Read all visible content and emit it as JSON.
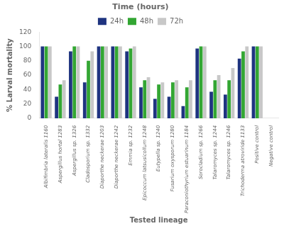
{
  "chart_data": {
    "type": "bar",
    "title": "Time (hours)",
    "xlabel": "Tested lineage",
    "ylabel": "% Larval mortality",
    "categories": [
      "Albifimbria lateralis 1160",
      "Aspergillus hortal 1283",
      "Aspergillus sp. 1326",
      "Cladosporium sp. 1332",
      "Diaporthe neckerae 1203",
      "Diaporthe neckerae 1242",
      "Emmia sp. 1232",
      "Epicoccum latsusicollum 1248",
      "Eutypella sp. 1240",
      "Fusarium oxysporum 1280",
      "Paraconiothyrium estuarinum 1184",
      "Sorocladium sp. 1266",
      "Talaromyces sp. 1244",
      "Talaromyces sp. 1246",
      "Trichoderma atroviride 1133",
      "Positive control",
      "Negative control"
    ],
    "series": [
      {
        "name": "24h",
        "color": "#1f3480",
        "values": [
          100,
          30,
          93,
          50,
          100,
          100,
          93,
          43,
          27,
          30,
          17,
          97,
          37,
          33,
          83,
          100,
          0
        ]
      },
      {
        "name": "48h",
        "color": "#33a633",
        "values": [
          100,
          47,
          100,
          80,
          100,
          100,
          97,
          53,
          47,
          50,
          43,
          100,
          53,
          53,
          93,
          100,
          0
        ]
      },
      {
        "name": "72h",
        "color": "#c8c8c8",
        "values": [
          100,
          53,
          100,
          93,
          100,
          100,
          100,
          57,
          50,
          53,
          53,
          100,
          60,
          70,
          100,
          100,
          0
        ]
      }
    ],
    "ylim": [
      0,
      120
    ],
    "yticks": [
      0,
      20,
      40,
      60,
      80,
      100,
      120
    ],
    "grid": false,
    "legend": "top"
  }
}
